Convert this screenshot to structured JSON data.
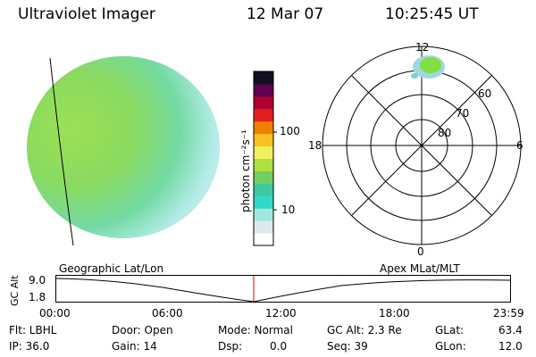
{
  "header": {
    "title": "Ultraviolet Imager",
    "date": "12 Mar 07",
    "time": "10:25:45 UT"
  },
  "colorbar": {
    "unit_label": "photon cm⁻²s⁻¹",
    "tick_100": "100",
    "tick_10": "10"
  },
  "polar": {
    "label_top": "12",
    "label_left": "18",
    "label_right": "6",
    "label_bottom": "0",
    "ring_60": "60",
    "ring_70": "70",
    "ring_80": "80"
  },
  "timeline": {
    "left_title": "Geographic Lat/Lon",
    "right_title": "Apex MLat/MLT",
    "axis_label": "GC Alt",
    "y_top": "9.0",
    "y_bottom": "1.8",
    "ticks": [
      "00:00",
      "06:00",
      "12:00",
      "18:00",
      "23:59"
    ],
    "current_time_fraction": 0.435
  },
  "footer": {
    "flt": "Flt: LBHL",
    "ip": "IP: 36.0",
    "door": "Door: Open",
    "gain": "Gain: 14",
    "mode": "Mode: Normal",
    "dsp_label": "Dsp:",
    "dsp_value": "0.0",
    "gcalt": "GC Alt: 2.3 Re",
    "seq": "Seq: 39",
    "glat_label": "GLat:",
    "glat_value": "63.4",
    "glon_label": "GLon:",
    "glon_value": "12.0"
  },
  "colors": {
    "bar_stops": [
      "#ffffff",
      "#dfe8ec",
      "#9fe8e0",
      "#30d8c8",
      "#40c8a0",
      "#70d060",
      "#b0e040",
      "#f0f060",
      "#f8c020",
      "#f08000",
      "#e02020",
      "#b00030",
      "#600050",
      "#101020"
    ],
    "marker": "#e00000"
  }
}
